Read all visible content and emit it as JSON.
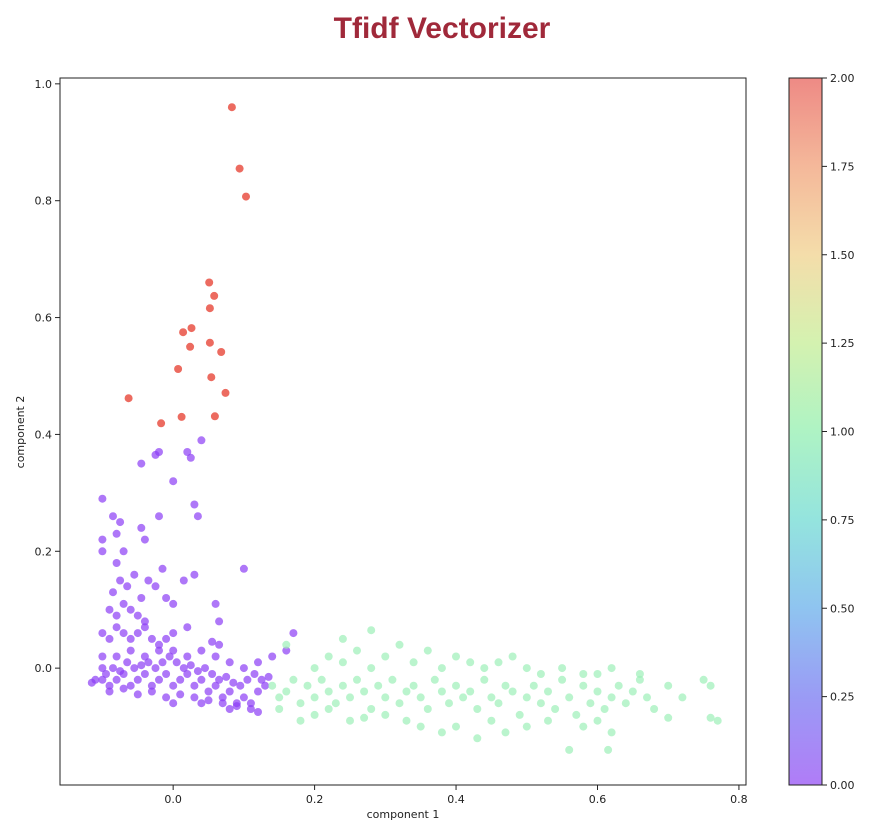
{
  "title": "Tfidf Vectorizer",
  "colors": {
    "title": "#a0293a",
    "cluster0": "#8b3df5",
    "cluster1": "#9df0b8",
    "cluster2": "#e5392b"
  },
  "chart_data": {
    "type": "scatter",
    "title": "Tfidf Vectorizer",
    "xlabel": "component 1",
    "ylabel": "component 2",
    "xlim": [
      -0.16,
      0.81
    ],
    "ylim": [
      -0.2,
      1.01
    ],
    "xticks": [
      "0.0",
      "0.2",
      "0.4",
      "0.6",
      "0.8"
    ],
    "xtick_values": [
      0,
      0.2,
      0.4,
      0.6,
      0.8
    ],
    "yticks": [
      "0.0",
      "0.2",
      "0.4",
      "0.6",
      "0.8",
      "1.0"
    ],
    "ytick_values": [
      0,
      0.2,
      0.4,
      0.6,
      0.8,
      1.0
    ],
    "grid": false,
    "colormap": "rainbow",
    "colorbar": {
      "range": [
        0,
        2
      ],
      "ticks": [
        "0.00",
        "0.25",
        "0.50",
        "0.75",
        "1.00",
        "1.25",
        "1.50",
        "1.75",
        "2.00"
      ],
      "tick_values": [
        0,
        0.25,
        0.5,
        0.75,
        1.0,
        1.25,
        1.5,
        1.75,
        2.0
      ]
    },
    "series": [
      {
        "cluster": 0,
        "points": [
          [
            -0.1,
            -0.02
          ],
          [
            -0.09,
            -0.03
          ],
          [
            -0.08,
            -0.02
          ],
          [
            -0.07,
            -0.01
          ],
          [
            -0.06,
            -0.03
          ],
          [
            -0.05,
            -0.02
          ],
          [
            -0.04,
            -0.01
          ],
          [
            -0.03,
            -0.03
          ],
          [
            -0.02,
            -0.02
          ],
          [
            -0.01,
            -0.01
          ],
          [
            0.0,
            -0.03
          ],
          [
            0.01,
            -0.02
          ],
          [
            0.02,
            -0.01
          ],
          [
            0.03,
            -0.03
          ],
          [
            0.04,
            -0.02
          ],
          [
            0.05,
            -0.04
          ],
          [
            0.06,
            -0.03
          ],
          [
            0.07,
            -0.05
          ],
          [
            0.08,
            -0.04
          ],
          [
            0.09,
            -0.06
          ],
          [
            0.1,
            -0.05
          ],
          [
            0.11,
            -0.06
          ],
          [
            0.12,
            -0.04
          ],
          [
            0.13,
            -0.03
          ],
          [
            -0.11,
            -0.02
          ],
          [
            -0.095,
            -0.01
          ],
          [
            -0.085,
            0.0
          ],
          [
            -0.075,
            -0.005
          ],
          [
            -0.065,
            0.01
          ],
          [
            -0.055,
            0.0
          ],
          [
            -0.045,
            0.005
          ],
          [
            -0.035,
            0.01
          ],
          [
            -0.025,
            0.0
          ],
          [
            -0.015,
            0.01
          ],
          [
            -0.005,
            0.02
          ],
          [
            0.005,
            0.01
          ],
          [
            0.015,
            0.0
          ],
          [
            0.025,
            0.005
          ],
          [
            0.035,
            -0.005
          ],
          [
            0.045,
            0.0
          ],
          [
            0.055,
            -0.01
          ],
          [
            0.065,
            -0.02
          ],
          [
            0.075,
            -0.015
          ],
          [
            0.085,
            -0.025
          ],
          [
            0.095,
            -0.03
          ],
          [
            0.105,
            -0.02
          ],
          [
            0.115,
            -0.01
          ],
          [
            0.125,
            -0.02
          ],
          [
            0.135,
            -0.015
          ],
          [
            -0.09,
            -0.04
          ],
          [
            -0.07,
            -0.035
          ],
          [
            -0.05,
            -0.045
          ],
          [
            -0.03,
            -0.04
          ],
          [
            -0.01,
            -0.05
          ],
          [
            0.01,
            -0.045
          ],
          [
            0.03,
            -0.05
          ],
          [
            0.05,
            -0.055
          ],
          [
            0.07,
            -0.06
          ],
          [
            0.09,
            -0.065
          ],
          [
            0.11,
            -0.07
          ],
          [
            0.08,
            -0.07
          ],
          [
            0.12,
            -0.075
          ],
          [
            -0.08,
            0.02
          ],
          [
            -0.06,
            0.03
          ],
          [
            -0.04,
            0.02
          ],
          [
            -0.02,
            0.03
          ],
          [
            0.0,
            0.03
          ],
          [
            0.02,
            0.02
          ],
          [
            0.04,
            0.03
          ],
          [
            0.06,
            0.02
          ],
          [
            0.08,
            0.01
          ],
          [
            0.1,
            0.0
          ],
          [
            0.12,
            0.01
          ],
          [
            0.14,
            0.02
          ],
          [
            0.16,
            0.03
          ],
          [
            0.17,
            0.06
          ],
          [
            -0.09,
            0.05
          ],
          [
            -0.08,
            0.07
          ],
          [
            -0.07,
            0.06
          ],
          [
            -0.06,
            0.05
          ],
          [
            -0.05,
            0.06
          ],
          [
            -0.04,
            0.07
          ],
          [
            -0.03,
            0.05
          ],
          [
            -0.02,
            0.04
          ],
          [
            -0.01,
            0.05
          ],
          [
            0.055,
            0.045
          ],
          [
            0.065,
            0.04
          ],
          [
            0.0,
            0.06
          ],
          [
            0.02,
            0.07
          ],
          [
            -0.09,
            0.1
          ],
          [
            -0.08,
            0.09
          ],
          [
            -0.07,
            0.11
          ],
          [
            -0.06,
            0.1
          ],
          [
            -0.05,
            0.09
          ],
          [
            -0.04,
            0.08
          ],
          [
            -0.085,
            0.13
          ],
          [
            -0.075,
            0.15
          ],
          [
            -0.065,
            0.14
          ],
          [
            -0.055,
            0.16
          ],
          [
            -0.045,
            0.12
          ],
          [
            -0.035,
            0.15
          ],
          [
            -0.025,
            0.14
          ],
          [
            -0.015,
            0.17
          ],
          [
            -0.1,
            0.22
          ],
          [
            -0.1,
            0.2
          ],
          [
            -0.08,
            0.18
          ],
          [
            -0.07,
            0.2
          ],
          [
            -0.08,
            0.23
          ],
          [
            -0.085,
            0.26
          ],
          [
            -0.075,
            0.25
          ],
          [
            -0.1,
            0.29
          ],
          [
            -0.045,
            0.24
          ],
          [
            -0.04,
            0.22
          ],
          [
            -0.02,
            0.26
          ],
          [
            0.03,
            0.28
          ],
          [
            0.035,
            0.26
          ],
          [
            0.0,
            0.32
          ],
          [
            -0.02,
            0.37
          ],
          [
            -0.045,
            0.35
          ],
          [
            -0.025,
            0.365
          ],
          [
            0.02,
            0.37
          ],
          [
            0.025,
            0.36
          ],
          [
            0.04,
            0.39
          ],
          [
            0.015,
            0.15
          ],
          [
            0.06,
            0.11
          ],
          [
            0.065,
            0.08
          ],
          [
            0.1,
            0.17
          ],
          [
            0.0,
            0.11
          ],
          [
            -0.01,
            0.12
          ],
          [
            0.03,
            0.16
          ],
          [
            -0.1,
            0.02
          ],
          [
            -0.1,
            0.06
          ],
          [
            -0.1,
            0.0
          ],
          [
            -0.115,
            -0.025
          ],
          [
            0.0,
            -0.06
          ],
          [
            0.04,
            -0.06
          ]
        ]
      },
      {
        "cluster": 1,
        "points": [
          [
            0.14,
            -0.03
          ],
          [
            0.15,
            -0.05
          ],
          [
            0.16,
            -0.04
          ],
          [
            0.17,
            -0.02
          ],
          [
            0.18,
            -0.06
          ],
          [
            0.19,
            -0.03
          ],
          [
            0.2,
            -0.05
          ],
          [
            0.21,
            -0.02
          ],
          [
            0.22,
            -0.04
          ],
          [
            0.23,
            -0.06
          ],
          [
            0.24,
            -0.03
          ],
          [
            0.25,
            -0.05
          ],
          [
            0.26,
            -0.02
          ],
          [
            0.27,
            -0.04
          ],
          [
            0.28,
            -0.07
          ],
          [
            0.29,
            -0.03
          ],
          [
            0.3,
            -0.05
          ],
          [
            0.31,
            -0.02
          ],
          [
            0.32,
            -0.06
          ],
          [
            0.33,
            -0.04
          ],
          [
            0.34,
            -0.03
          ],
          [
            0.35,
            -0.05
          ],
          [
            0.36,
            -0.07
          ],
          [
            0.37,
            -0.02
          ],
          [
            0.38,
            -0.04
          ],
          [
            0.39,
            -0.06
          ],
          [
            0.4,
            -0.03
          ],
          [
            0.41,
            -0.05
          ],
          [
            0.42,
            -0.04
          ],
          [
            0.43,
            -0.07
          ],
          [
            0.44,
            -0.02
          ],
          [
            0.45,
            -0.05
          ],
          [
            0.46,
            -0.06
          ],
          [
            0.47,
            -0.03
          ],
          [
            0.48,
            -0.04
          ],
          [
            0.49,
            -0.08
          ],
          [
            0.5,
            -0.05
          ],
          [
            0.51,
            -0.03
          ],
          [
            0.52,
            -0.06
          ],
          [
            0.53,
            -0.04
          ],
          [
            0.54,
            -0.07
          ],
          [
            0.55,
            -0.02
          ],
          [
            0.56,
            -0.05
          ],
          [
            0.57,
            -0.08
          ],
          [
            0.58,
            -0.03
          ],
          [
            0.59,
            -0.06
          ],
          [
            0.6,
            -0.04
          ],
          [
            0.61,
            -0.07
          ],
          [
            0.62,
            -0.05
          ],
          [
            0.63,
            -0.03
          ],
          [
            0.64,
            -0.06
          ],
          [
            0.65,
            -0.04
          ],
          [
            0.66,
            -0.02
          ],
          [
            0.67,
            -0.05
          ],
          [
            0.68,
            -0.07
          ],
          [
            0.7,
            -0.03
          ],
          [
            0.72,
            -0.05
          ],
          [
            0.75,
            -0.02
          ],
          [
            0.76,
            -0.03
          ],
          [
            0.77,
            -0.09
          ],
          [
            0.76,
            -0.085
          ],
          [
            0.7,
            -0.085
          ],
          [
            0.2,
            0.0
          ],
          [
            0.22,
            0.02
          ],
          [
            0.24,
            0.01
          ],
          [
            0.26,
            0.03
          ],
          [
            0.28,
            0.0
          ],
          [
            0.3,
            0.02
          ],
          [
            0.32,
            0.04
          ],
          [
            0.34,
            0.01
          ],
          [
            0.36,
            0.03
          ],
          [
            0.38,
            0.0
          ],
          [
            0.4,
            0.02
          ],
          [
            0.42,
            0.01
          ],
          [
            0.44,
            0.0
          ],
          [
            0.46,
            0.01
          ],
          [
            0.48,
            0.02
          ],
          [
            0.5,
            0.0
          ],
          [
            0.52,
            -0.01
          ],
          [
            0.55,
            0.0
          ],
          [
            0.58,
            -0.01
          ],
          [
            0.6,
            -0.01
          ],
          [
            0.62,
            0.0
          ],
          [
            0.66,
            -0.01
          ],
          [
            0.16,
            0.04
          ],
          [
            0.24,
            0.05
          ],
          [
            0.28,
            0.065
          ],
          [
            0.2,
            -0.08
          ],
          [
            0.25,
            -0.09
          ],
          [
            0.3,
            -0.08
          ],
          [
            0.35,
            -0.1
          ],
          [
            0.38,
            -0.11
          ],
          [
            0.4,
            -0.1
          ],
          [
            0.43,
            -0.12
          ],
          [
            0.45,
            -0.09
          ],
          [
            0.47,
            -0.11
          ],
          [
            0.5,
            -0.1
          ],
          [
            0.53,
            -0.09
          ],
          [
            0.58,
            -0.1
          ],
          [
            0.6,
            -0.09
          ],
          [
            0.62,
            -0.11
          ],
          [
            0.56,
            -0.14
          ],
          [
            0.615,
            -0.14
          ],
          [
            0.15,
            -0.07
          ],
          [
            0.18,
            -0.09
          ],
          [
            0.22,
            -0.07
          ],
          [
            0.27,
            -0.085
          ],
          [
            0.33,
            -0.09
          ]
        ]
      },
      {
        "cluster": 2,
        "points": [
          [
            0.083,
            0.96
          ],
          [
            0.094,
            0.855
          ],
          [
            0.103,
            0.807
          ],
          [
            0.051,
            0.66
          ],
          [
            0.058,
            0.637
          ],
          [
            0.052,
            0.616
          ],
          [
            0.014,
            0.575
          ],
          [
            0.026,
            0.582
          ],
          [
            0.024,
            0.55
          ],
          [
            0.052,
            0.557
          ],
          [
            0.068,
            0.541
          ],
          [
            0.007,
            0.512
          ],
          [
            0.054,
            0.498
          ],
          [
            0.074,
            0.471
          ],
          [
            -0.063,
            0.462
          ],
          [
            0.012,
            0.43
          ],
          [
            0.059,
            0.431
          ],
          [
            -0.017,
            0.419
          ]
        ]
      }
    ]
  }
}
